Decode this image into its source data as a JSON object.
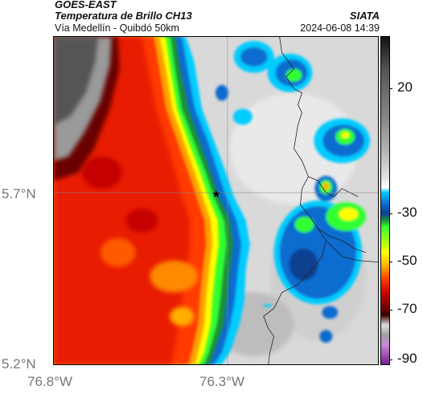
{
  "header": {
    "satellite": "GOES-EAST",
    "product": "Temperatura de Brillo CH13",
    "region": "Vía Medellín - Quibdó 50km",
    "agency": "SIATA",
    "timestamp": "2024-06-08 14:39"
  },
  "axes": {
    "lat_labels": [
      "5.7°N",
      "5.2°N"
    ],
    "lon_labels": [
      "76.8°W",
      "76.3°W"
    ]
  },
  "colorbar": {
    "tick_labels": [
      "20",
      "-30",
      "-50",
      "-70",
      "-90"
    ]
  },
  "colors": {
    "very_cold": "#0a6ccf",
    "cold_green": "#33ff33",
    "warm_red": "#e81c00",
    "border_lines": "#222222"
  }
}
